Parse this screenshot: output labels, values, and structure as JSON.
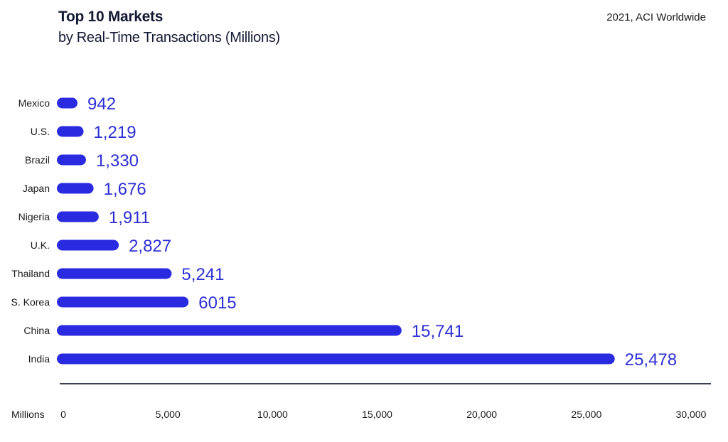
{
  "header": {
    "title": "Top 10 Markets",
    "subtitle": "by Real-Time Transactions (Millions)",
    "source": "2021, ACI Worldwide"
  },
  "colors": {
    "bar": "#2a2be0",
    "value_label": "#2d2fd4",
    "axis_line": "#3a3f55"
  },
  "chart_data": {
    "type": "bar",
    "orientation": "horizontal",
    "title": "Top 10 Markets",
    "subtitle": "by Real-Time Transactions (Millions)",
    "xlabel": "Millions",
    "ylabel": "",
    "categories": [
      "Mexico",
      "U.S.",
      "Brazil",
      "Japan",
      "Nigeria",
      "U.K.",
      "Thailand",
      "S. Korea",
      "China",
      "India"
    ],
    "values": [
      942,
      1219,
      1330,
      1676,
      1911,
      2827,
      5241,
      6015,
      15741,
      25478
    ],
    "value_labels": [
      "942",
      "1,219",
      "1,330",
      "1,676",
      "1,911",
      "2,827",
      "5,241",
      "6015",
      "15,741",
      "25,478"
    ],
    "xlim": [
      0,
      30000
    ],
    "x_ticks": [
      0,
      5000,
      10000,
      15000,
      20000,
      25000,
      30000
    ],
    "x_tick_labels": [
      "0",
      "5,000",
      "10,000",
      "15,000",
      "20,000",
      "25,000",
      "30,000"
    ],
    "grid": false,
    "legend": "none"
  }
}
